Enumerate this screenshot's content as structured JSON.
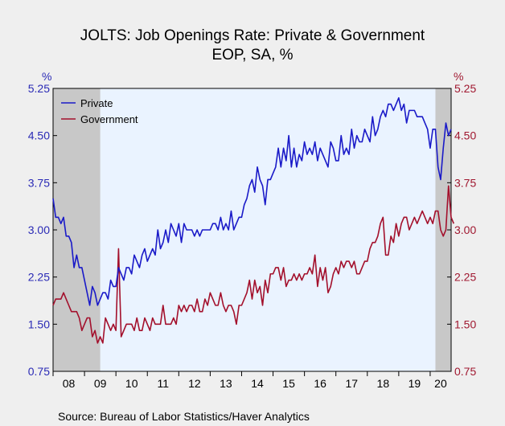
{
  "chart_data": {
    "type": "line",
    "title": "JOLTS: Job Openings Rate: Private & Government",
    "subtitle": "EOP, SA, %",
    "ylabel_left": "%",
    "ylabel_right": "%",
    "source": "Source:  Bureau of Labor Statistics/Haver Analytics",
    "ylim": [
      0.75,
      5.25
    ],
    "yticks": [
      "5.25",
      "4.50",
      "3.75",
      "3.00",
      "2.25",
      "1.50",
      "0.75"
    ],
    "xlim": [
      2008.0,
      2020.6667
    ],
    "xticks": [
      "08",
      "09",
      "10",
      "11",
      "12",
      "13",
      "14",
      "15",
      "16",
      "17",
      "18",
      "19",
      "20"
    ],
    "recessions": [
      [
        2008.0,
        2009.5
      ],
      [
        2020.1667,
        2020.6667
      ]
    ],
    "colors": {
      "private": "#1a1ac8",
      "government": "#a3102c",
      "recession": "#c8c8c8",
      "plot_bg": "#eaf3ff"
    },
    "legend": "top-left",
    "x_start": "2008-01",
    "series": [
      {
        "name": "Private",
        "key": "private",
        "values": [
          3.5,
          3.2,
          3.2,
          3.1,
          3.2,
          2.9,
          2.9,
          2.8,
          2.4,
          2.6,
          2.4,
          2.4,
          2.2,
          2.0,
          1.8,
          2.1,
          2.0,
          1.8,
          1.9,
          2.0,
          2.0,
          1.9,
          2.2,
          2.1,
          2.1,
          2.4,
          2.3,
          2.2,
          2.4,
          2.4,
          2.3,
          2.6,
          2.5,
          2.4,
          2.6,
          2.7,
          2.5,
          2.6,
          2.7,
          2.6,
          3.0,
          2.7,
          2.8,
          3.0,
          2.8,
          3.1,
          3.0,
          2.9,
          3.1,
          2.8,
          3.1,
          3.0,
          3.0,
          3.0,
          2.9,
          3.0,
          2.9,
          3.0,
          3.0,
          3.0,
          3.0,
          3.1,
          3.1,
          3.0,
          3.2,
          3.0,
          3.1,
          3.0,
          3.3,
          3.0,
          3.1,
          3.2,
          3.2,
          3.4,
          3.5,
          3.7,
          3.8,
          3.6,
          4.0,
          3.8,
          3.7,
          3.4,
          3.8,
          3.8,
          3.9,
          4.0,
          4.3,
          4.0,
          4.3,
          4.1,
          4.5,
          4.0,
          4.3,
          4.0,
          4.2,
          4.1,
          4.4,
          4.2,
          4.3,
          4.2,
          4.4,
          4.1,
          4.3,
          4.2,
          4.1,
          4.0,
          4.4,
          4.3,
          4.1,
          4.1,
          4.5,
          4.2,
          4.3,
          4.2,
          4.6,
          4.3,
          4.5,
          4.4,
          4.4,
          4.6,
          4.5,
          4.4,
          4.8,
          4.5,
          4.6,
          4.8,
          4.9,
          4.8,
          5.0,
          5.0,
          4.9,
          5.0,
          5.1,
          4.9,
          5.0,
          4.7,
          4.9,
          4.9,
          4.9,
          4.8,
          4.8,
          4.8,
          4.7,
          4.6,
          4.3,
          4.6,
          4.6,
          4.0,
          3.8,
          4.3,
          4.7,
          4.5,
          4.6
        ]
      },
      {
        "name": "Government",
        "key": "government",
        "values": [
          1.8,
          1.9,
          1.9,
          1.9,
          2.0,
          1.9,
          1.8,
          1.7,
          1.7,
          1.7,
          1.6,
          1.4,
          1.5,
          1.6,
          1.6,
          1.3,
          1.4,
          1.2,
          1.3,
          1.2,
          1.6,
          1.5,
          1.4,
          1.5,
          1.4,
          2.7,
          1.3,
          1.4,
          1.5,
          1.5,
          1.5,
          1.4,
          1.6,
          1.4,
          1.4,
          1.6,
          1.5,
          1.4,
          1.6,
          1.5,
          1.5,
          1.5,
          1.8,
          1.5,
          1.5,
          1.5,
          1.6,
          1.5,
          1.8,
          1.7,
          1.8,
          1.7,
          1.8,
          1.8,
          1.7,
          1.9,
          1.7,
          1.7,
          1.9,
          1.8,
          2.0,
          1.9,
          1.8,
          1.8,
          2.0,
          1.8,
          1.7,
          1.8,
          1.8,
          1.7,
          1.5,
          1.8,
          1.8,
          1.9,
          2.0,
          2.2,
          1.9,
          2.2,
          2.0,
          2.1,
          1.8,
          2.2,
          2.0,
          2.3,
          2.3,
          2.4,
          2.4,
          2.2,
          2.4,
          2.1,
          2.2,
          2.2,
          2.3,
          2.2,
          2.3,
          2.2,
          2.3,
          2.3,
          2.4,
          2.3,
          2.6,
          2.1,
          2.4,
          2.2,
          2.4,
          2.0,
          2.1,
          2.3,
          2.4,
          2.3,
          2.5,
          2.4,
          2.5,
          2.5,
          2.4,
          2.5,
          2.3,
          2.3,
          2.4,
          2.5,
          2.5,
          2.7,
          2.8,
          2.8,
          2.9,
          3.1,
          3.2,
          2.6,
          2.6,
          2.9,
          2.8,
          3.1,
          2.9,
          3.1,
          3.2,
          3.2,
          3.0,
          3.1,
          3.2,
          3.1,
          3.2,
          3.3,
          3.2,
          3.1,
          3.2,
          3.1,
          3.3,
          3.3,
          3.0,
          2.9,
          3.0,
          3.7,
          3.2,
          3.1
        ]
      }
    ]
  }
}
